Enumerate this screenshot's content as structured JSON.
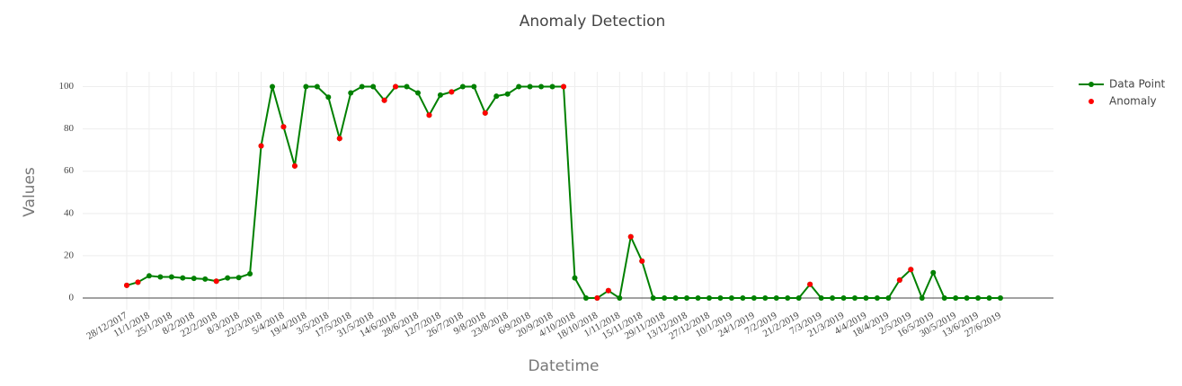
{
  "chart_data": {
    "type": "line",
    "title": "Anomaly Detection",
    "x_label": "Datetime",
    "y_label": "Values",
    "categories": [
      "28/12/2017",
      null,
      "11/1/2018",
      null,
      "25/1/2018",
      null,
      "8/2/2018",
      null,
      "22/2/2018",
      null,
      "8/3/2018",
      null,
      "22/3/2018",
      null,
      "5/4/2018",
      null,
      "19/4/2018",
      null,
      "3/5/2018",
      null,
      "17/5/2018",
      null,
      "31/5/2018",
      null,
      "14/6/2018",
      null,
      "28/6/2018",
      null,
      "12/7/2018",
      null,
      "26/7/2018",
      null,
      "9/8/2018",
      null,
      "23/8/2018",
      null,
      "6/9/2018",
      null,
      "20/9/2018",
      null,
      "4/10/2018",
      null,
      "18/10/2018",
      null,
      "1/11/2018",
      null,
      "15/11/2018",
      null,
      "29/11/2018",
      null,
      "13/12/2018",
      null,
      "27/12/2018",
      null,
      "10/1/2019",
      null,
      "24/1/2019",
      null,
      "7/2/2019",
      null,
      "21/2/2019",
      null,
      "7/3/2019",
      null,
      "21/3/2019",
      null,
      "4/4/2019",
      null,
      "18/4/2019",
      null,
      "2/5/2019",
      null,
      "16/5/2019",
      null,
      "30/5/2019",
      null,
      "13/6/2019",
      null,
      "27/6/2019"
    ],
    "series": [
      {
        "name": "Data Point",
        "color": "#008000",
        "mode": "lines+markers",
        "values": [
          6,
          7.5,
          10.5,
          10,
          10,
          9.5,
          9.3,
          9,
          8,
          9.5,
          9.7,
          11.5,
          72,
          100,
          81,
          62.5,
          100,
          100,
          95,
          75.5,
          97,
          100,
          100,
          93.5,
          100,
          100,
          97,
          86.5,
          96,
          97.5,
          100,
          100,
          87.5,
          95.5,
          96.5,
          100,
          100,
          100,
          100,
          100,
          9.5,
          0,
          0,
          3.5,
          0,
          29,
          17.5,
          0,
          0,
          0,
          0,
          0,
          0,
          0,
          0,
          0,
          0,
          0,
          0,
          0,
          0,
          6.5,
          0,
          0,
          0,
          0,
          0,
          0,
          0,
          8.5,
          13.5,
          0,
          12,
          0,
          0,
          0,
          0,
          0,
          0
        ]
      },
      {
        "name": "Anomaly",
        "color": "#ff0000",
        "mode": "markers",
        "values": [
          6,
          7.5,
          null,
          null,
          null,
          null,
          null,
          null,
          8,
          null,
          null,
          null,
          72,
          null,
          81,
          62.5,
          null,
          null,
          null,
          75.5,
          null,
          null,
          null,
          93.5,
          100,
          null,
          null,
          86.5,
          null,
          97.5,
          null,
          null,
          87.5,
          null,
          null,
          null,
          null,
          null,
          null,
          100,
          null,
          null,
          0,
          3.5,
          null,
          29,
          17.5,
          null,
          null,
          null,
          null,
          null,
          null,
          null,
          null,
          null,
          null,
          null,
          null,
          null,
          null,
          6.5,
          null,
          null,
          null,
          null,
          null,
          null,
          null,
          8.5,
          13.5,
          null,
          null,
          null,
          null,
          null,
          null,
          null,
          null
        ]
      }
    ],
    "ylim": [
      -5.5,
      107
    ],
    "yticks": [
      0,
      20,
      40,
      60,
      80,
      100
    ],
    "grid": true,
    "legend": "top-right"
  }
}
